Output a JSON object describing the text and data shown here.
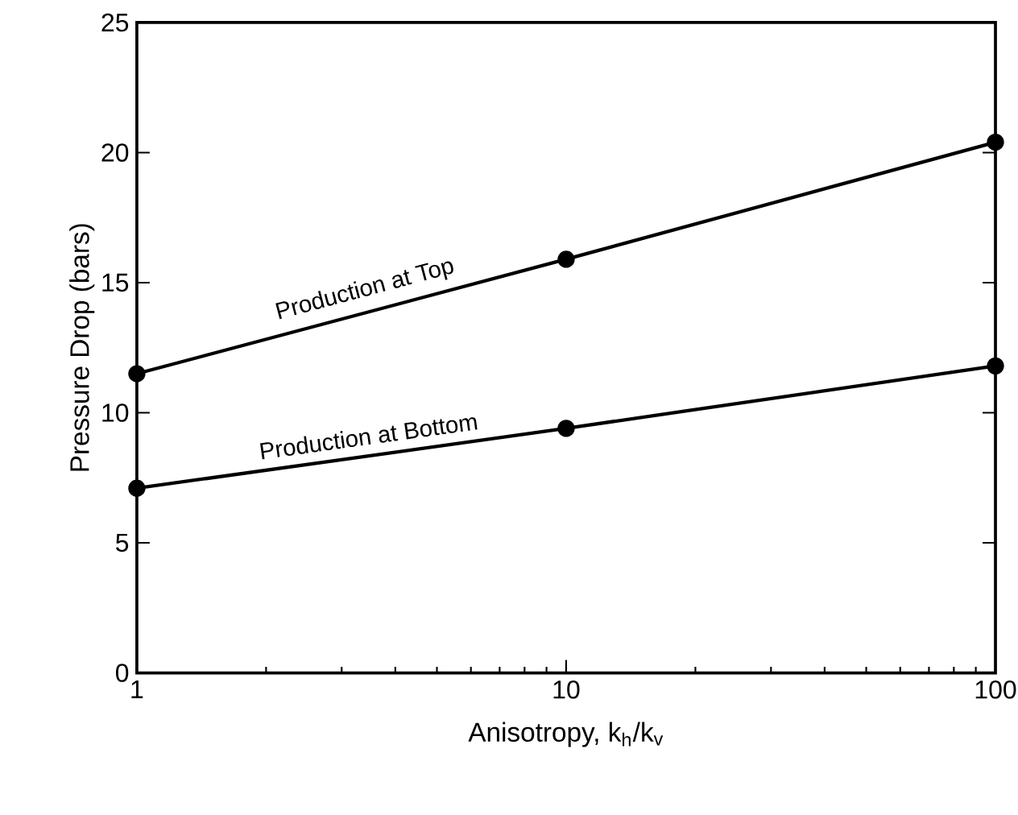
{
  "chart_data": {
    "type": "line",
    "xlabel": "Anisotropy, k$_{h}$/k$_{v}$",
    "ylabel": "Pressure Drop (bars)",
    "x": [
      1,
      10,
      100
    ],
    "series": [
      {
        "name": "Production at Top",
        "color": "#000000",
        "values": [
          11.5,
          15.9,
          20.4
        ]
      },
      {
        "name": "Production at Bottom",
        "color": "#000000",
        "values": [
          7.1,
          9.4,
          11.8
        ]
      }
    ],
    "log": "x",
    "xlim": [
      1,
      100
    ],
    "xticks": [
      1,
      10,
      100
    ],
    "ylim": [
      0,
      25
    ],
    "yticks": [
      0,
      5,
      10,
      15,
      20,
      25
    ],
    "grid": false,
    "legend": false,
    "marker": "circle",
    "line_style": "solid"
  }
}
